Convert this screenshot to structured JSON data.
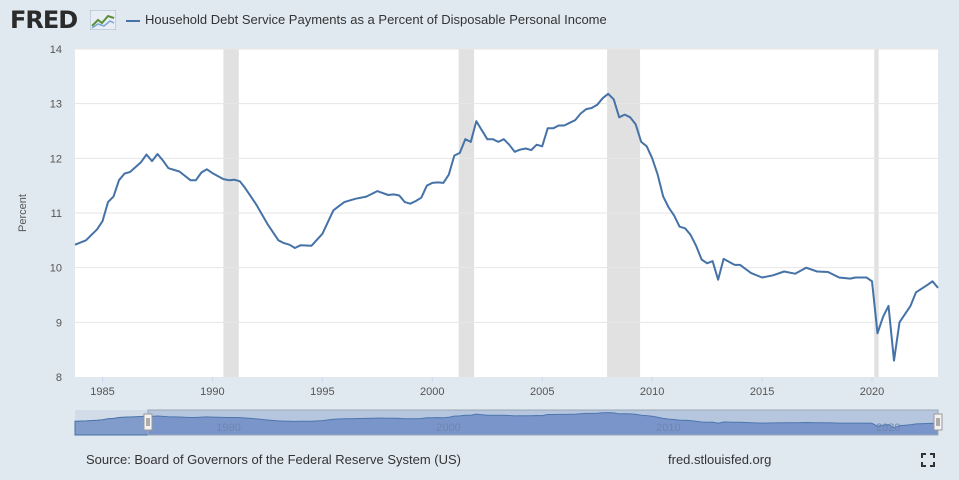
{
  "header": {
    "logo_text": "FRED",
    "logo_icon": "fred-graph-icon",
    "legend_label": "Household Debt Service Payments as a Percent of Disposable Personal Income"
  },
  "footer": {
    "source": "Source: Board of Governors of the Federal Reserve System (US)",
    "url": "fred.stlouisfed.org",
    "fullscreen_icon": "fullscreen-icon"
  },
  "colors": {
    "series": "#4572a7",
    "recession": "#e1e1e1",
    "background": "#e1e9f0",
    "navigator_fill": "#6685c2"
  },
  "chart_data": {
    "type": "line",
    "title": "",
    "xlabel": "",
    "ylabel": "Percent",
    "xlim": [
      1983.75,
      2023.0
    ],
    "ylim": [
      8,
      14
    ],
    "x_ticks": [
      "1985",
      "1990",
      "1995",
      "2000",
      "2005",
      "2010",
      "2015",
      "2020"
    ],
    "y_ticks": [
      "8",
      "9",
      "10",
      "11",
      "12",
      "13",
      "14"
    ],
    "navigator_ticks": [
      "1990",
      "2000",
      "2010",
      "2020"
    ],
    "grid": true,
    "legend_position": "top",
    "recessions": [
      [
        1990.5,
        1991.2
      ],
      [
        2001.2,
        2001.9
      ],
      [
        2007.95,
        2009.45
      ],
      [
        2020.1,
        2020.3
      ]
    ],
    "series": [
      {
        "name": "Household Debt Service Payments as a Percent of Disposable Personal Income",
        "x": [
          1983.75,
          1984.25,
          1984.75,
          1985.0,
          1985.25,
          1985.5,
          1985.75,
          1986.0,
          1986.25,
          1986.5,
          1986.75,
          1987.0,
          1987.25,
          1987.5,
          1987.75,
          1988.0,
          1988.5,
          1989.0,
          1989.25,
          1989.5,
          1989.75,
          1990.0,
          1990.5,
          1990.75,
          1991.0,
          1991.25,
          1991.5,
          1991.75,
          1992.0,
          1992.5,
          1993.0,
          1993.25,
          1993.5,
          1993.75,
          1994.0,
          1994.5,
          1995.0,
          1995.5,
          1996.0,
          1996.5,
          1997.0,
          1997.5,
          1998.0,
          1998.25,
          1998.5,
          1998.75,
          1999.0,
          1999.25,
          1999.5,
          1999.75,
          2000.0,
          2000.25,
          2000.5,
          2000.75,
          2001.0,
          2001.25,
          2001.5,
          2001.75,
          2002.0,
          2002.5,
          2002.75,
          2003.0,
          2003.25,
          2003.5,
          2003.75,
          2004.0,
          2004.25,
          2004.5,
          2004.75,
          2005.0,
          2005.25,
          2005.5,
          2005.75,
          2006.0,
          2006.25,
          2006.5,
          2006.75,
          2007.0,
          2007.25,
          2007.5,
          2007.75,
          2008.0,
          2008.25,
          2008.5,
          2008.75,
          2009.0,
          2009.25,
          2009.5,
          2009.75,
          2010.0,
          2010.25,
          2010.5,
          2010.75,
          2011.0,
          2011.25,
          2011.5,
          2011.75,
          2012.0,
          2012.25,
          2012.5,
          2012.75,
          2013.0,
          2013.25,
          2013.75,
          2014.0,
          2014.5,
          2015.0,
          2015.5,
          2016.0,
          2016.5,
          2017.0,
          2017.5,
          2018.0,
          2018.5,
          2019.0,
          2019.25,
          2019.5,
          2019.75,
          2020.0,
          2020.25,
          2020.5,
          2020.75,
          2021.0,
          2021.25,
          2021.5,
          2021.75,
          2022.0,
          2022.5,
          2022.75,
          2023.0
        ],
        "values": [
          10.42,
          10.5,
          10.7,
          10.85,
          11.2,
          11.3,
          11.6,
          11.72,
          11.75,
          11.84,
          11.93,
          12.07,
          11.95,
          12.08,
          11.96,
          11.82,
          11.76,
          11.6,
          11.6,
          11.74,
          11.8,
          11.73,
          11.62,
          11.6,
          11.61,
          11.58,
          11.45,
          11.3,
          11.15,
          10.8,
          10.5,
          10.45,
          10.42,
          10.36,
          10.41,
          10.4,
          10.62,
          11.05,
          11.2,
          11.26,
          11.3,
          11.4,
          11.33,
          11.34,
          11.32,
          11.2,
          11.17,
          11.22,
          11.28,
          11.5,
          11.55,
          11.56,
          11.55,
          11.7,
          12.05,
          12.1,
          12.35,
          12.3,
          12.68,
          12.35,
          12.35,
          12.3,
          12.35,
          12.25,
          12.12,
          12.16,
          12.18,
          12.15,
          12.25,
          12.22,
          12.55,
          12.55,
          12.6,
          12.6,
          12.65,
          12.7,
          12.82,
          12.9,
          12.92,
          12.98,
          13.1,
          13.18,
          13.08,
          12.75,
          12.8,
          12.75,
          12.62,
          12.3,
          12.22,
          12.0,
          11.7,
          11.3,
          11.1,
          10.95,
          10.75,
          10.72,
          10.6,
          10.4,
          10.15,
          10.08,
          10.12,
          9.78,
          10.16,
          10.05,
          10.05,
          9.9,
          9.82,
          9.86,
          9.93,
          9.89,
          10.0,
          9.93,
          9.92,
          9.82,
          9.8,
          9.82,
          9.82,
          9.82,
          9.75,
          8.8,
          9.1,
          9.3,
          8.3,
          9.0,
          9.15,
          9.3,
          9.55,
          9.68,
          9.75,
          9.63
        ]
      }
    ]
  }
}
